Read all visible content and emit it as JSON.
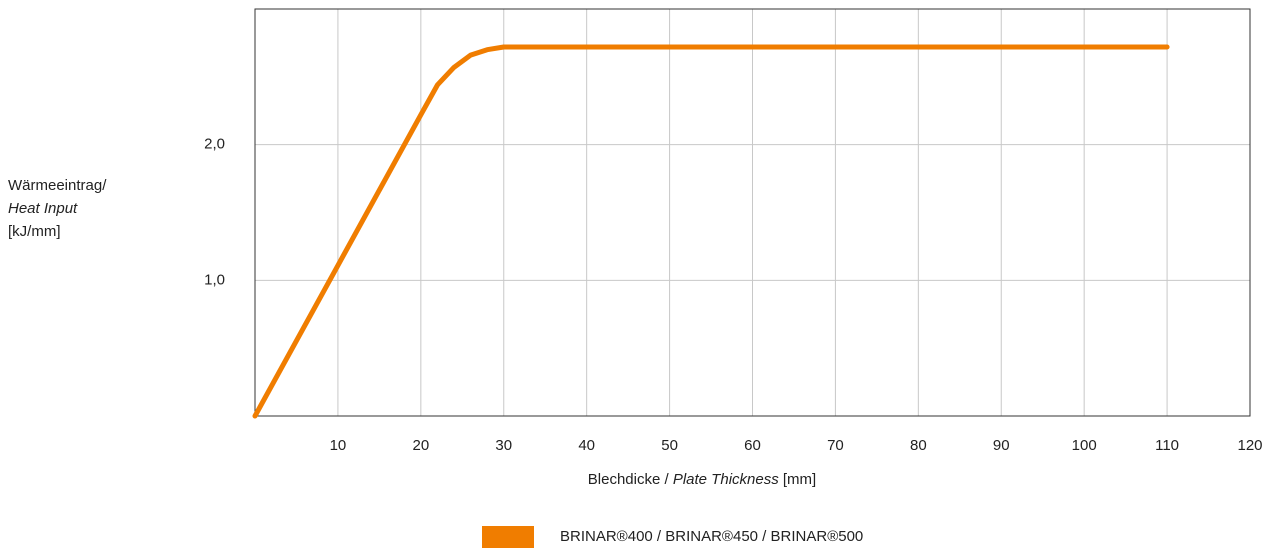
{
  "chart_data": {
    "type": "line",
    "y_label": [
      "Wärmeeintrag/",
      "Heat Input",
      "[kJ/mm]"
    ],
    "x_label": [
      "Blechdicke / ",
      "Plate Thickness",
      " [mm]"
    ],
    "x": [
      0,
      10,
      20,
      22,
      24,
      26,
      28,
      30,
      110
    ],
    "series": [
      {
        "name": "BRINAR®400 / BRINAR®450 / BRINAR®500",
        "color": "#f07d00",
        "values": [
          0,
          1.11,
          2.22,
          2.44,
          2.57,
          2.66,
          2.7,
          2.72,
          2.72
        ]
      }
    ],
    "xlim": [
      0,
      120
    ],
    "xticks": [
      10,
      20,
      30,
      40,
      50,
      60,
      70,
      80,
      90,
      100,
      110,
      120
    ],
    "ylim": [
      0,
      3
    ],
    "yticks": [
      {
        "value": 1,
        "label": "1,0"
      },
      {
        "value": 2,
        "label": "2,0"
      }
    ],
    "grid": true
  }
}
